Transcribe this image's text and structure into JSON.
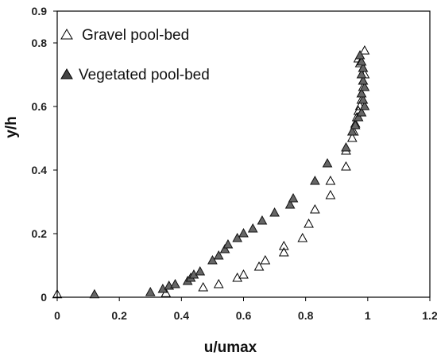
{
  "chart_data": {
    "type": "scatter",
    "title": "",
    "xlabel": "u/umax",
    "ylabel": "y/h",
    "xlim": [
      0,
      1.2
    ],
    "ylim": [
      0,
      0.9
    ],
    "x_ticks": [
      "0",
      "0.2",
      "0.4",
      "0.6",
      "0.8",
      "1",
      "1.2"
    ],
    "y_ticks": [
      "0",
      "0.2",
      "0.4",
      "0.6",
      "0.8",
      "0.9"
    ],
    "y_tick_values": [
      0,
      0.2,
      0.4,
      0.6,
      0.8,
      0.9
    ],
    "grid": false,
    "legend_position": "top-left",
    "series": [
      {
        "name": "Gravel pool-bed",
        "marker": "open-triangle",
        "color": "#000000",
        "points": [
          [
            0.0,
            0.008
          ],
          [
            0.35,
            0.012
          ],
          [
            0.47,
            0.03
          ],
          [
            0.52,
            0.04
          ],
          [
            0.58,
            0.06
          ],
          [
            0.6,
            0.07
          ],
          [
            0.65,
            0.095
          ],
          [
            0.67,
            0.115
          ],
          [
            0.73,
            0.14
          ],
          [
            0.73,
            0.16
          ],
          [
            0.79,
            0.185
          ],
          [
            0.81,
            0.23
          ],
          [
            0.83,
            0.275
          ],
          [
            0.88,
            0.32
          ],
          [
            0.88,
            0.365
          ],
          [
            0.93,
            0.41
          ],
          [
            0.93,
            0.46
          ],
          [
            0.95,
            0.5
          ],
          [
            0.955,
            0.52
          ],
          [
            0.96,
            0.545
          ],
          [
            0.965,
            0.565
          ],
          [
            0.97,
            0.585
          ],
          [
            0.975,
            0.6
          ],
          [
            0.98,
            0.62
          ],
          [
            0.98,
            0.64
          ],
          [
            0.985,
            0.66
          ],
          [
            0.985,
            0.68
          ],
          [
            0.99,
            0.7
          ],
          [
            0.985,
            0.72
          ],
          [
            0.975,
            0.735
          ],
          [
            0.97,
            0.75
          ],
          [
            0.99,
            0.775
          ]
        ]
      },
      {
        "name": "Vegetated pool-bed",
        "marker": "filled-triangle",
        "color": "#666666",
        "points": [
          [
            0.12,
            0.008
          ],
          [
            0.3,
            0.015
          ],
          [
            0.34,
            0.025
          ],
          [
            0.36,
            0.035
          ],
          [
            0.38,
            0.04
          ],
          [
            0.42,
            0.05
          ],
          [
            0.43,
            0.06
          ],
          [
            0.44,
            0.07
          ],
          [
            0.46,
            0.08
          ],
          [
            0.5,
            0.115
          ],
          [
            0.52,
            0.13
          ],
          [
            0.54,
            0.15
          ],
          [
            0.55,
            0.165
          ],
          [
            0.58,
            0.185
          ],
          [
            0.6,
            0.2
          ],
          [
            0.63,
            0.215
          ],
          [
            0.66,
            0.24
          ],
          [
            0.7,
            0.265
          ],
          [
            0.75,
            0.29
          ],
          [
            0.76,
            0.31
          ],
          [
            0.83,
            0.365
          ],
          [
            0.87,
            0.42
          ],
          [
            0.93,
            0.47
          ],
          [
            0.95,
            0.52
          ],
          [
            0.96,
            0.54
          ],
          [
            0.97,
            0.565
          ],
          [
            0.98,
            0.58
          ],
          [
            0.99,
            0.6
          ],
          [
            0.985,
            0.62
          ],
          [
            0.98,
            0.64
          ],
          [
            0.99,
            0.66
          ],
          [
            0.985,
            0.68
          ],
          [
            0.98,
            0.7
          ],
          [
            0.985,
            0.72
          ],
          [
            0.98,
            0.74
          ],
          [
            0.975,
            0.76
          ]
        ]
      }
    ]
  }
}
